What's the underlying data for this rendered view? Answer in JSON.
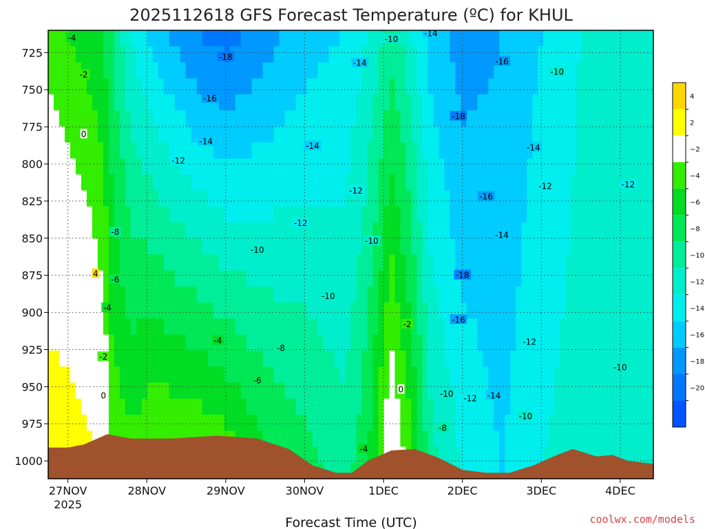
{
  "chart_data": {
    "type": "heatmap",
    "title": "2025112618 GFS Forecast Temperature (ºC) for KHUL",
    "xlabel": "Forecast Time (UTC)",
    "ylabel": "",
    "credit": "coolwx.com/models",
    "x_ticks": [
      {
        "day": 0,
        "label": "27NOV",
        "sublabel": "2025"
      },
      {
        "day": 1,
        "label": "28NOV"
      },
      {
        "day": 2,
        "label": "29NOV"
      },
      {
        "day": 3,
        "label": "30NOV"
      },
      {
        "day": 4,
        "label": "1DEC"
      },
      {
        "day": 5,
        "label": "2DEC"
      },
      {
        "day": 6,
        "label": "3DEC"
      },
      {
        "day": 7,
        "label": "4DEC"
      }
    ],
    "xlim": [
      -0.25,
      7.42
    ],
    "y_ticks": [
      725,
      750,
      775,
      800,
      825,
      850,
      875,
      900,
      925,
      950,
      975,
      1000
    ],
    "ylim": [
      1012,
      710
    ],
    "y_unit": "hPa",
    "colorbar": {
      "ticks": [
        4,
        2,
        -2,
        -4,
        -6,
        -8,
        -10,
        -12,
        -14,
        -16,
        -18,
        -20
      ],
      "bands": [
        {
          "from": 4,
          "to": 6,
          "color": "#ffd700"
        },
        {
          "from": 2,
          "to": 4,
          "color": "#ffff00"
        },
        {
          "from": -2,
          "to": 2,
          "color": "#ffffff"
        },
        {
          "from": -4,
          "to": -2,
          "color": "#33ee00"
        },
        {
          "from": -6,
          "to": -4,
          "color": "#00dd22"
        },
        {
          "from": -8,
          "to": -6,
          "color": "#00e855"
        },
        {
          "from": -10,
          "to": -8,
          "color": "#00ee99"
        },
        {
          "from": -12,
          "to": -10,
          "color": "#00eecc"
        },
        {
          "from": -14,
          "to": -12,
          "color": "#00eeee"
        },
        {
          "from": -16,
          "to": -14,
          "color": "#00ccff"
        },
        {
          "from": -18,
          "to": -16,
          "color": "#0099ff"
        },
        {
          "from": -20,
          "to": -18,
          "color": "#0077ff"
        },
        {
          "from": -22,
          "to": -20,
          "color": "#0055ff"
        }
      ]
    },
    "terrain_color": "#a0522d",
    "surface_pressure": [
      {
        "day": -0.25,
        "p": 991
      },
      {
        "day": 0.0,
        "p": 991
      },
      {
        "day": 0.2,
        "p": 989
      },
      {
        "day": 0.5,
        "p": 982
      },
      {
        "day": 0.8,
        "p": 985
      },
      {
        "day": 1.3,
        "p": 985
      },
      {
        "day": 1.9,
        "p": 983
      },
      {
        "day": 2.4,
        "p": 985
      },
      {
        "day": 2.8,
        "p": 992
      },
      {
        "day": 3.1,
        "p": 1003
      },
      {
        "day": 3.4,
        "p": 1008
      },
      {
        "day": 3.6,
        "p": 1008
      },
      {
        "day": 3.8,
        "p": 1000
      },
      {
        "day": 4.1,
        "p": 993
      },
      {
        "day": 4.4,
        "p": 992
      },
      {
        "day": 4.7,
        "p": 998
      },
      {
        "day": 5.0,
        "p": 1006
      },
      {
        "day": 5.3,
        "p": 1008
      },
      {
        "day": 5.6,
        "p": 1008
      },
      {
        "day": 5.9,
        "p": 1003
      },
      {
        "day": 6.2,
        "p": 996
      },
      {
        "day": 6.4,
        "p": 992
      },
      {
        "day": 6.7,
        "p": 997
      },
      {
        "day": 6.9,
        "p": 996
      },
      {
        "day": 7.1,
        "p": 1000
      },
      {
        "day": 7.42,
        "p": 1002
      }
    ],
    "temperature_profile": [
      {
        "day": -0.25,
        "t_top": -3,
        "t_bottom": 4
      },
      {
        "day": 0.0,
        "t_top": -4,
        "t_bottom": 4
      },
      {
        "day": 0.25,
        "t_top": -5,
        "t_bottom": 3
      },
      {
        "day": 0.45,
        "t_top": -6,
        "t_bottom": 1
      },
      {
        "day": 0.55,
        "t_top": -8,
        "t_bottom": -2
      },
      {
        "day": 0.8,
        "t_top": -12,
        "t_bottom": -3
      },
      {
        "day": 1.1,
        "t_top": -15,
        "t_bottom": -1
      },
      {
        "day": 1.6,
        "t_top": -18,
        "t_bottom": -1
      },
      {
        "day": 2.0,
        "t_top": -19,
        "t_bottom": -2
      },
      {
        "day": 2.5,
        "t_top": -17,
        "t_bottom": -5
      },
      {
        "day": 3.0,
        "t_top": -15,
        "t_bottom": -7
      },
      {
        "day": 3.5,
        "t_top": -14,
        "t_bottom": -9
      },
      {
        "day": 3.8,
        "t_top": -12,
        "t_bottom": -6
      },
      {
        "day": 4.1,
        "t_top": -9,
        "t_bottom": 1
      },
      {
        "day": 4.3,
        "t_top": -11,
        "t_bottom": -2
      },
      {
        "day": 4.6,
        "t_top": -15,
        "t_bottom": -9
      },
      {
        "day": 5.0,
        "t_top": -17,
        "t_bottom": -12
      },
      {
        "day": 5.5,
        "t_top": -16,
        "t_bottom": -14
      },
      {
        "day": 6.0,
        "t_top": -14,
        "t_bottom": -12
      },
      {
        "day": 6.5,
        "t_top": -12,
        "t_bottom": -11
      },
      {
        "day": 7.0,
        "t_top": -11,
        "t_bottom": -10
      },
      {
        "day": 7.42,
        "t_top": -10,
        "t_bottom": -10
      }
    ],
    "contour_labels": [
      {
        "day": 0.05,
        "p": 715,
        "text": "-4"
      },
      {
        "day": 0.2,
        "p": 740,
        "text": "-2"
      },
      {
        "day": 0.2,
        "p": 780,
        "text": "0"
      },
      {
        "day": 0.6,
        "p": 846,
        "text": "-8"
      },
      {
        "day": 0.6,
        "p": 878,
        "text": "-6"
      },
      {
        "day": 0.5,
        "p": 897,
        "text": "-4"
      },
      {
        "day": 0.35,
        "p": 874,
        "text": "4"
      },
      {
        "day": 0.45,
        "p": 930,
        "text": "-2"
      },
      {
        "day": 0.45,
        "p": 956,
        "text": "0"
      },
      {
        "day": 1.4,
        "p": 798,
        "text": "-12"
      },
      {
        "day": 1.75,
        "p": 785,
        "text": "-14"
      },
      {
        "day": 1.8,
        "p": 756,
        "text": "-16"
      },
      {
        "day": 2.0,
        "p": 728,
        "text": "-18"
      },
      {
        "day": 2.4,
        "p": 858,
        "text": "-10"
      },
      {
        "day": 1.9,
        "p": 919,
        "text": "-4"
      },
      {
        "day": 3.1,
        "p": 788,
        "text": "-14"
      },
      {
        "day": 2.95,
        "p": 840,
        "text": "-12"
      },
      {
        "day": 3.3,
        "p": 889,
        "text": "-10"
      },
      {
        "day": 2.7,
        "p": 924,
        "text": "-8"
      },
      {
        "day": 2.4,
        "p": 946,
        "text": "-6"
      },
      {
        "day": 3.7,
        "p": 732,
        "text": "-14"
      },
      {
        "day": 4.1,
        "p": 716,
        "text": "-10"
      },
      {
        "day": 4.6,
        "p": 712,
        "text": "-14"
      },
      {
        "day": 3.65,
        "p": 818,
        "text": "-12"
      },
      {
        "day": 3.85,
        "p": 852,
        "text": "-10"
      },
      {
        "day": 4.3,
        "p": 908,
        "text": "-2"
      },
      {
        "day": 4.22,
        "p": 952,
        "text": "0"
      },
      {
        "day": 3.75,
        "p": 992,
        "text": "-4"
      },
      {
        "day": 4.95,
        "p": 768,
        "text": "-18"
      },
      {
        "day": 5.3,
        "p": 822,
        "text": "-16"
      },
      {
        "day": 5.0,
        "p": 875,
        "text": "-18"
      },
      {
        "day": 5.5,
        "p": 848,
        "text": "-14"
      },
      {
        "day": 4.95,
        "p": 905,
        "text": "-16"
      },
      {
        "day": 5.5,
        "p": 731,
        "text": "-16"
      },
      {
        "day": 6.2,
        "p": 738,
        "text": "-10"
      },
      {
        "day": 5.9,
        "p": 789,
        "text": "-14"
      },
      {
        "day": 6.05,
        "p": 815,
        "text": "-12"
      },
      {
        "day": 5.85,
        "p": 920,
        "text": "-12"
      },
      {
        "day": 4.8,
        "p": 955,
        "text": "-10"
      },
      {
        "day": 5.1,
        "p": 958,
        "text": "-12"
      },
      {
        "day": 5.4,
        "p": 956,
        "text": "-14"
      },
      {
        "day": 5.8,
        "p": 970,
        "text": "-10"
      },
      {
        "day": 4.75,
        "p": 978,
        "text": "-8"
      },
      {
        "day": 7.1,
        "p": 814,
        "text": "-12"
      },
      {
        "day": 7.0,
        "p": 937,
        "text": "-10"
      }
    ]
  }
}
